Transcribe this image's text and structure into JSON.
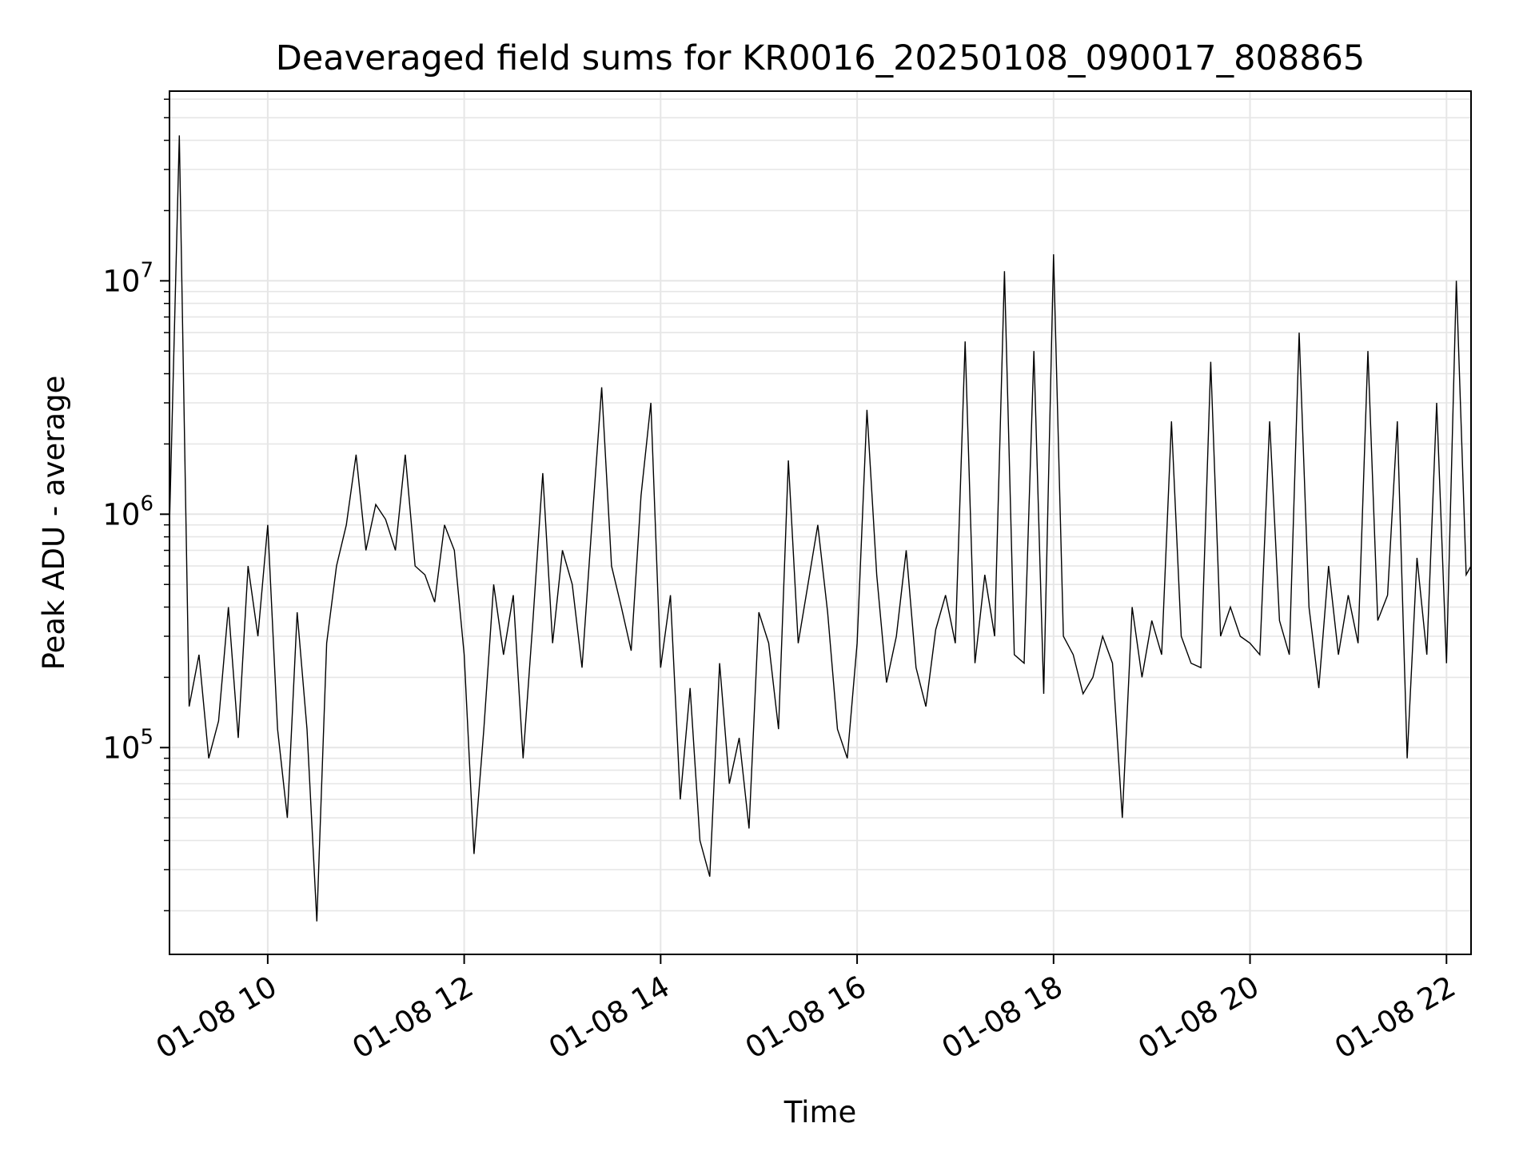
{
  "chart_data": {
    "type": "line",
    "title": "Deaveraged field sums for KR0016_20250108_090017_808865",
    "xlabel": "Time",
    "ylabel": "Peak ADU - average",
    "yscale": "log",
    "xlim": [
      "01-08 09:00",
      "01-08 22:15"
    ],
    "ylim": [
      13000,
      65000000
    ],
    "grid": true,
    "x_ticks": [
      "01-08 10",
      "01-08 12",
      "01-08 14",
      "01-08 16",
      "01-08 18",
      "01-08 20",
      "01-08 22"
    ],
    "y_ticks": [
      {
        "value": 100000,
        "base": "10",
        "exp": "5"
      },
      {
        "value": 1000000,
        "base": "10",
        "exp": "6"
      },
      {
        "value": 10000000,
        "base": "10",
        "exp": "7"
      }
    ],
    "line_color": "#000000",
    "series": [
      {
        "x": [
          "01-08 09:00",
          "01-08 09:06",
          "01-08 09:12",
          "01-08 09:18",
          "01-08 09:24",
          "01-08 09:30",
          "01-08 09:36",
          "01-08 09:42",
          "01-08 09:48",
          "01-08 09:54",
          "01-08 10:00",
          "01-08 10:06",
          "01-08 10:12",
          "01-08 10:18",
          "01-08 10:24",
          "01-08 10:30",
          "01-08 10:36",
          "01-08 10:42",
          "01-08 10:48",
          "01-08 10:54",
          "01-08 11:00",
          "01-08 11:06",
          "01-08 11:12",
          "01-08 11:18",
          "01-08 11:24",
          "01-08 11:30",
          "01-08 11:36",
          "01-08 11:42",
          "01-08 11:48",
          "01-08 11:54",
          "01-08 12:00",
          "01-08 12:06",
          "01-08 12:12",
          "01-08 12:18",
          "01-08 12:24",
          "01-08 12:30",
          "01-08 12:36",
          "01-08 12:42",
          "01-08 12:48",
          "01-08 12:54",
          "01-08 13:00",
          "01-08 13:06",
          "01-08 13:12",
          "01-08 13:18",
          "01-08 13:24",
          "01-08 13:30",
          "01-08 13:36",
          "01-08 13:42",
          "01-08 13:48",
          "01-08 13:54",
          "01-08 14:00",
          "01-08 14:06",
          "01-08 14:12",
          "01-08 14:18",
          "01-08 14:24",
          "01-08 14:30",
          "01-08 14:36",
          "01-08 14:42",
          "01-08 14:48",
          "01-08 14:54",
          "01-08 15:00",
          "01-08 15:06",
          "01-08 15:12",
          "01-08 15:18",
          "01-08 15:24",
          "01-08 15:30",
          "01-08 15:36",
          "01-08 15:42",
          "01-08 15:48",
          "01-08 15:54",
          "01-08 16:00",
          "01-08 16:06",
          "01-08 16:12",
          "01-08 16:18",
          "01-08 16:24",
          "01-08 16:30",
          "01-08 16:36",
          "01-08 16:42",
          "01-08 16:48",
          "01-08 16:54",
          "01-08 17:00",
          "01-08 17:06",
          "01-08 17:12",
          "01-08 17:18",
          "01-08 17:24",
          "01-08 17:30",
          "01-08 17:36",
          "01-08 17:42",
          "01-08 17:48",
          "01-08 17:54",
          "01-08 18:00",
          "01-08 18:06",
          "01-08 18:12",
          "01-08 18:18",
          "01-08 18:24",
          "01-08 18:30",
          "01-08 18:36",
          "01-08 18:42",
          "01-08 18:48",
          "01-08 18:54",
          "01-08 19:00",
          "01-08 19:06",
          "01-08 19:12",
          "01-08 19:18",
          "01-08 19:24",
          "01-08 19:30",
          "01-08 19:36",
          "01-08 19:42",
          "01-08 19:48",
          "01-08 19:54",
          "01-08 20:00",
          "01-08 20:06",
          "01-08 20:12",
          "01-08 20:18",
          "01-08 20:24",
          "01-08 20:30",
          "01-08 20:36",
          "01-08 20:42",
          "01-08 20:48",
          "01-08 20:54",
          "01-08 21:00",
          "01-08 21:06",
          "01-08 21:12",
          "01-08 21:18",
          "01-08 21:24",
          "01-08 21:30",
          "01-08 21:36",
          "01-08 21:42",
          "01-08 21:48",
          "01-08 21:54",
          "01-08 22:00",
          "01-08 22:06",
          "01-08 22:12",
          "01-08 22:15"
        ],
        "y": [
          900000,
          42000000,
          150000,
          250000,
          90000,
          130000,
          400000,
          110000,
          600000,
          300000,
          900000,
          120000,
          50000,
          380000,
          120000,
          18000,
          280000,
          600000,
          900000,
          1800000,
          700000,
          1100000,
          950000,
          700000,
          1800000,
          600000,
          550000,
          420000,
          900000,
          700000,
          250000,
          35000,
          120000,
          500000,
          250000,
          450000,
          90000,
          350000,
          1500000,
          280000,
          700000,
          500000,
          220000,
          900000,
          3500000,
          600000,
          400000,
          260000,
          1200000,
          3000000,
          220000,
          450000,
          60000,
          180000,
          40000,
          28000,
          230000,
          70000,
          110000,
          45000,
          380000,
          280000,
          120000,
          1700000,
          280000,
          500000,
          900000,
          380000,
          120000,
          90000,
          280000,
          2800000,
          550000,
          190000,
          300000,
          700000,
          220000,
          150000,
          320000,
          450000,
          280000,
          5500000,
          230000,
          550000,
          300000,
          11000000,
          250000,
          230000,
          5000000,
          170000,
          13000000,
          300000,
          250000,
          170000,
          200000,
          300000,
          230000,
          50000,
          400000,
          200000,
          350000,
          250000,
          2500000,
          300000,
          230000,
          220000,
          4500000,
          300000,
          400000,
          300000,
          280000,
          250000,
          2500000,
          350000,
          250000,
          6000000,
          400000,
          180000,
          600000,
          250000,
          450000,
          280000,
          5000000,
          350000,
          450000,
          2500000,
          90000,
          650000,
          250000,
          3000000,
          230000,
          10000000,
          550000,
          600000
        ]
      }
    ]
  }
}
